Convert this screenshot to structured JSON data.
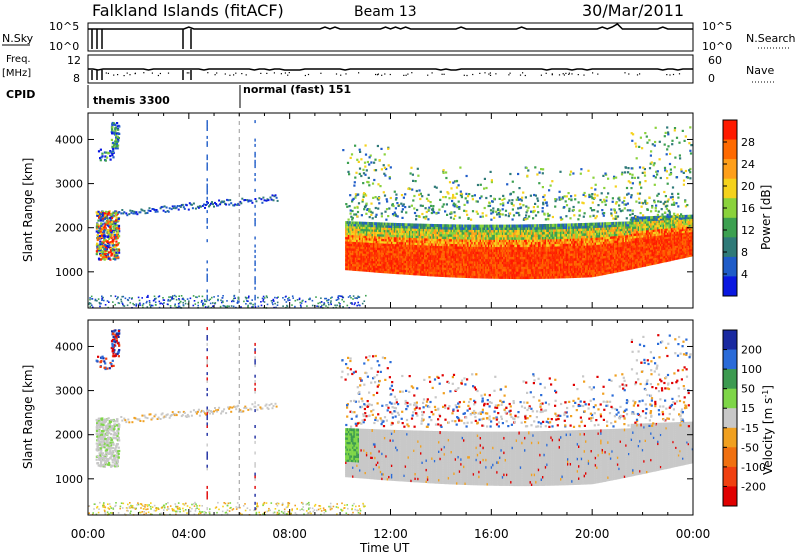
{
  "header": {
    "station": "Falkland Islands (fitACF)",
    "beam": "Beam 13",
    "date": "30/Mar/2011"
  },
  "strips": {
    "nsky_label": "N.Sky",
    "nsky_ticks": [
      "10^5",
      "10^0"
    ],
    "nsearch_label": "N.Search",
    "freq_label": "Freq.",
    "freq_unit": "[MHz]",
    "freq_ticks": [
      "12",
      "8"
    ],
    "nave_label": "Nave",
    "nave_ticks": [
      "60",
      "0"
    ],
    "cpid_label": "CPID",
    "cpid_modes": [
      "themis 3300",
      "normal (fast) 151"
    ]
  },
  "chart_data": [
    {
      "type": "heatmap",
      "xlabel": "",
      "ylabel": "Slant Range [km]",
      "x_ticks": [
        "00:00",
        "04:00",
        "08:00",
        "12:00",
        "16:00",
        "20:00",
        "00:00"
      ],
      "x_range_hours": [
        0,
        24
      ],
      "y_ticks": [
        1000,
        2000,
        3000,
        4000
      ],
      "y_range_km": [
        180,
        4600
      ],
      "colorbar": {
        "label": "Power [dB]",
        "ticks": [
          "28",
          "24",
          "20",
          "16",
          "12",
          "8",
          "4"
        ],
        "colors": [
          "#ff1a00",
          "#ff6a00",
          "#ff9f1a",
          "#f5d21c",
          "#8ad23c",
          "#3ca050",
          "#2f7a78",
          "#1f5cc8",
          "#0a18e0"
        ]
      },
      "features": [
        {
          "name": "main_band",
          "t_start_h": 10.2,
          "t_end_h": 24,
          "range_km": [
            900,
            2200
          ]
        },
        {
          "name": "early_echo",
          "t_start_h": 0.3,
          "t_end_h": 1.2,
          "range_km": [
            1300,
            2400
          ]
        },
        {
          "name": "high_patch",
          "t_start_h": 0.9,
          "t_end_h": 1.2,
          "range_km": [
            3800,
            4400
          ]
        },
        {
          "name": "scattered_line",
          "t_start_h": 1.2,
          "t_end_h": 7.5,
          "range_km": [
            2300,
            2800
          ]
        }
      ]
    },
    {
      "type": "heatmap",
      "xlabel": "Time UT",
      "ylabel": "Slant Range [km]",
      "x_ticks": [
        "00:00",
        "04:00",
        "08:00",
        "12:00",
        "16:00",
        "20:00",
        "00:00"
      ],
      "x_range_hours": [
        0,
        24
      ],
      "y_ticks": [
        1000,
        2000,
        3000,
        4000
      ],
      "y_range_km": [
        180,
        4600
      ],
      "colorbar": {
        "label": "Velocity [m s^-1]",
        "ticks": [
          "200",
          "100",
          "50",
          "15",
          "-15",
          "-50",
          "-100",
          "-200"
        ],
        "colors": [
          "#1a2aa0",
          "#2a6bd8",
          "#3c9a50",
          "#7ed648",
          "#c8c8c8",
          "#f0a020",
          "#f07010",
          "#f04010",
          "#e00000"
        ]
      },
      "features": [
        {
          "name": "ground_scatter_band",
          "t_start_h": 10.2,
          "t_end_h": 24,
          "range_km": [
            900,
            2200
          ],
          "color": "#c8c8c8"
        },
        {
          "name": "green_edge",
          "t_start_h": 9.8,
          "t_end_h": 10.5,
          "range_km": [
            1300,
            2500
          ],
          "color": "#7ed648"
        }
      ]
    }
  ]
}
